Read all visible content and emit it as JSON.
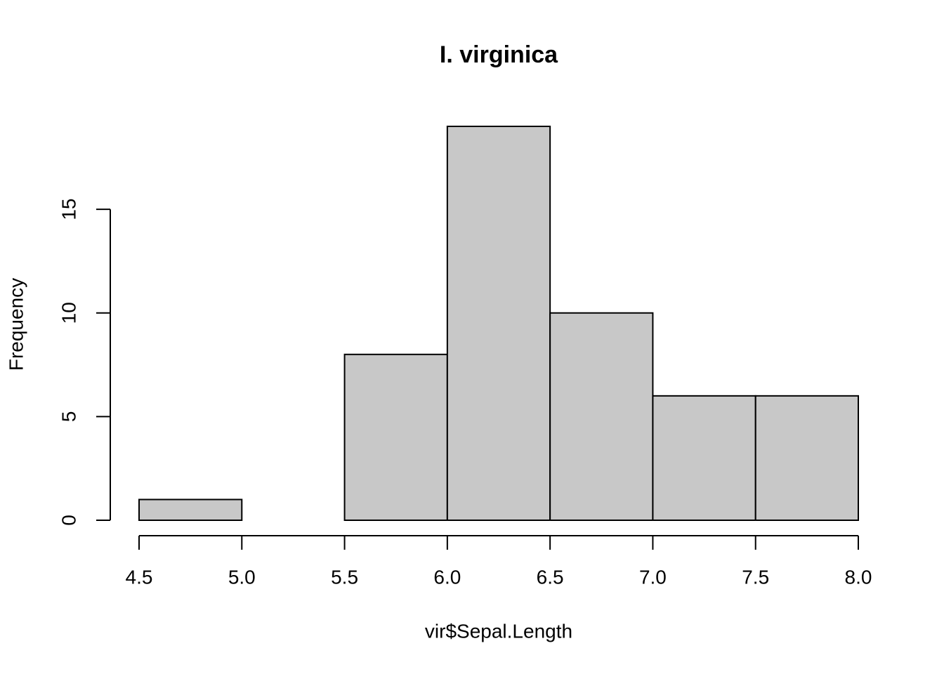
{
  "chart_data": {
    "type": "histogram",
    "title": "I. virginica",
    "xlabel": "vir$Sepal.Length",
    "ylabel": "Frequency",
    "bins": [
      4.5,
      5.0,
      5.5,
      6.0,
      6.5,
      7.0,
      7.5,
      8.0
    ],
    "values": [
      1,
      0,
      8,
      19,
      10,
      6,
      6
    ],
    "color": "#c8c8c8",
    "xlim": [
      4.5,
      8.0
    ],
    "ylim": [
      0,
      19
    ],
    "xticks": [
      4.5,
      {
        "value": 5,
        "label": "5.0"
      },
      5.5,
      {
        "value": 6,
        "label": "6.0"
      },
      6.5,
      {
        "value": 7,
        "label": "7.0"
      },
      7.5,
      {
        "value": 8,
        "label": "8.0"
      }
    ],
    "yticks": [
      0,
      5,
      10,
      15
    ]
  }
}
